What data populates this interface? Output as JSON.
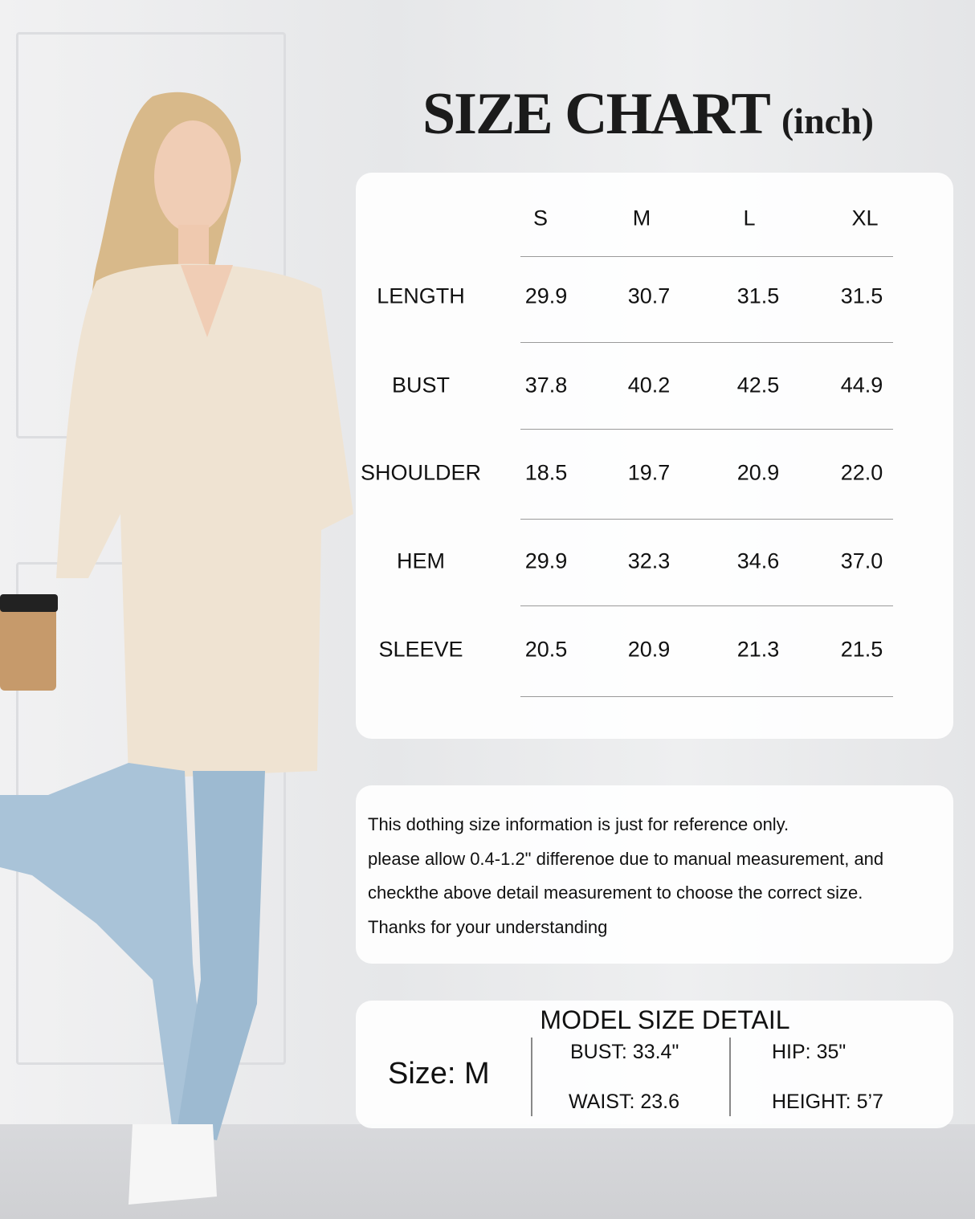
{
  "title": {
    "main": "SIZE CHART",
    "unit": "(inch)"
  },
  "size_table": {
    "columns": [
      "S",
      "M",
      "L",
      "XL"
    ],
    "rows": [
      {
        "label": "LENGTH",
        "values": [
          "29.9",
          "30.7",
          "31.5",
          "31.5"
        ]
      },
      {
        "label": "BUST",
        "values": [
          "37.8",
          "40.2",
          "42.5",
          "44.9"
        ]
      },
      {
        "label": "SHOULDER",
        "values": [
          "18.5",
          "19.7",
          "20.9",
          "22.0"
        ]
      },
      {
        "label": "HEM",
        "values": [
          "29.9",
          "32.3",
          "34.6",
          "37.0"
        ]
      },
      {
        "label": "SLEEVE",
        "values": [
          "20.5",
          "20.9",
          "21.3",
          "21.5"
        ]
      }
    ]
  },
  "note": {
    "lines": [
      "This dothing size information is just for reference only.",
      "please allow 0.4-1.2\" differenoe due to manual measurement, and",
      "checkthe above detail measurement to choose the correct size.",
      "Thanks for your understanding"
    ]
  },
  "model": {
    "title": "MODEL SIZE DETAIL",
    "size": "Size: M",
    "bust": "BUST: 33.4\"",
    "waist": "WAIST: 23.6",
    "hip": "HIP: 35\"",
    "height": "HEIGHT: 5’7"
  },
  "colors": {
    "sweater": "#efe3d2",
    "jeans": "#a9c3d8",
    "text": "#111111"
  }
}
